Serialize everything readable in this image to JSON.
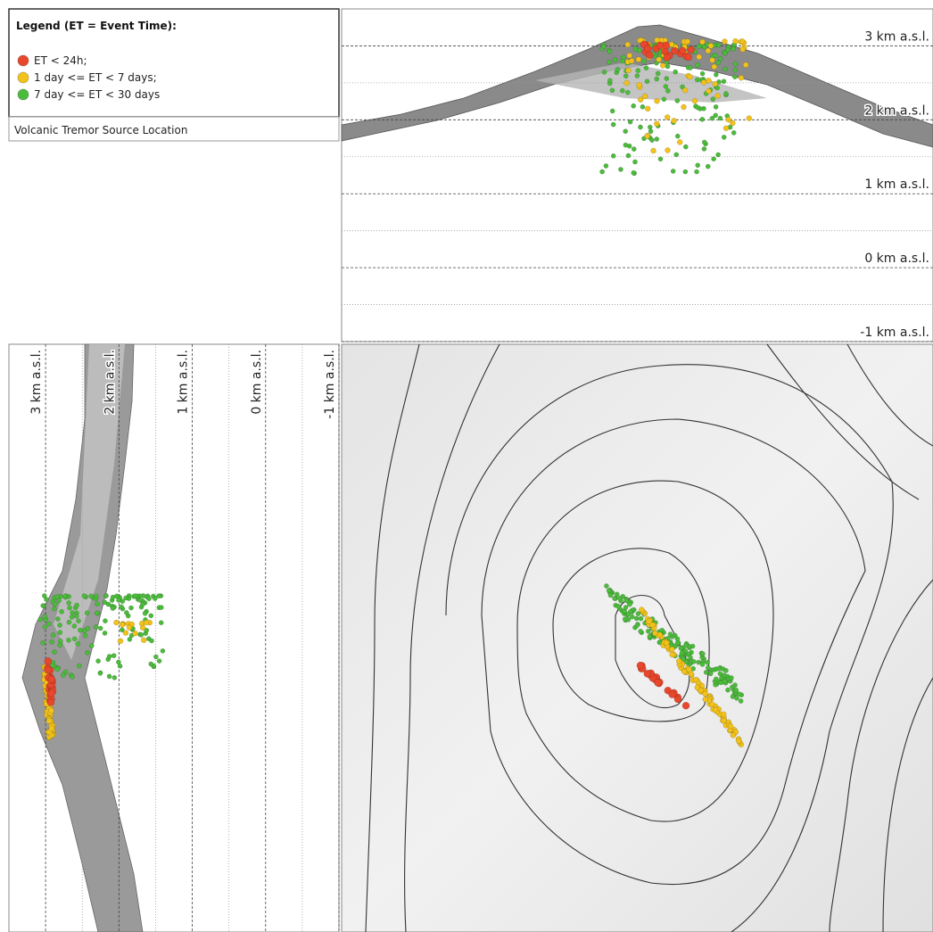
{
  "legend": {
    "title": "Legend (ET = Event Time):",
    "items": [
      {
        "label": "ET < 24h;",
        "color": "#e8472c"
      },
      {
        "label": "1 day <= ET < 7 days;",
        "color": "#f2c21b"
      },
      {
        "label": "7 day <= ET < 30 days",
        "color": "#4cbb3c"
      }
    ]
  },
  "caption": "Volcanic Tremor Source Location",
  "elevation_axis": {
    "lim": [
      -1,
      3.5
    ],
    "ticks": [
      {
        "value": 3,
        "label": "3 km a.s.l."
      },
      {
        "value": 2,
        "label": "2 km a.s.l."
      },
      {
        "value": 1,
        "label": "1 km a.s.l."
      },
      {
        "value": 0,
        "label": "0 km a.s.l."
      },
      {
        "value": -1,
        "label": "-1 km a.s.l."
      }
    ],
    "minor_ticks": [
      2.5,
      1.5,
      0.5,
      -0.5
    ]
  }
}
